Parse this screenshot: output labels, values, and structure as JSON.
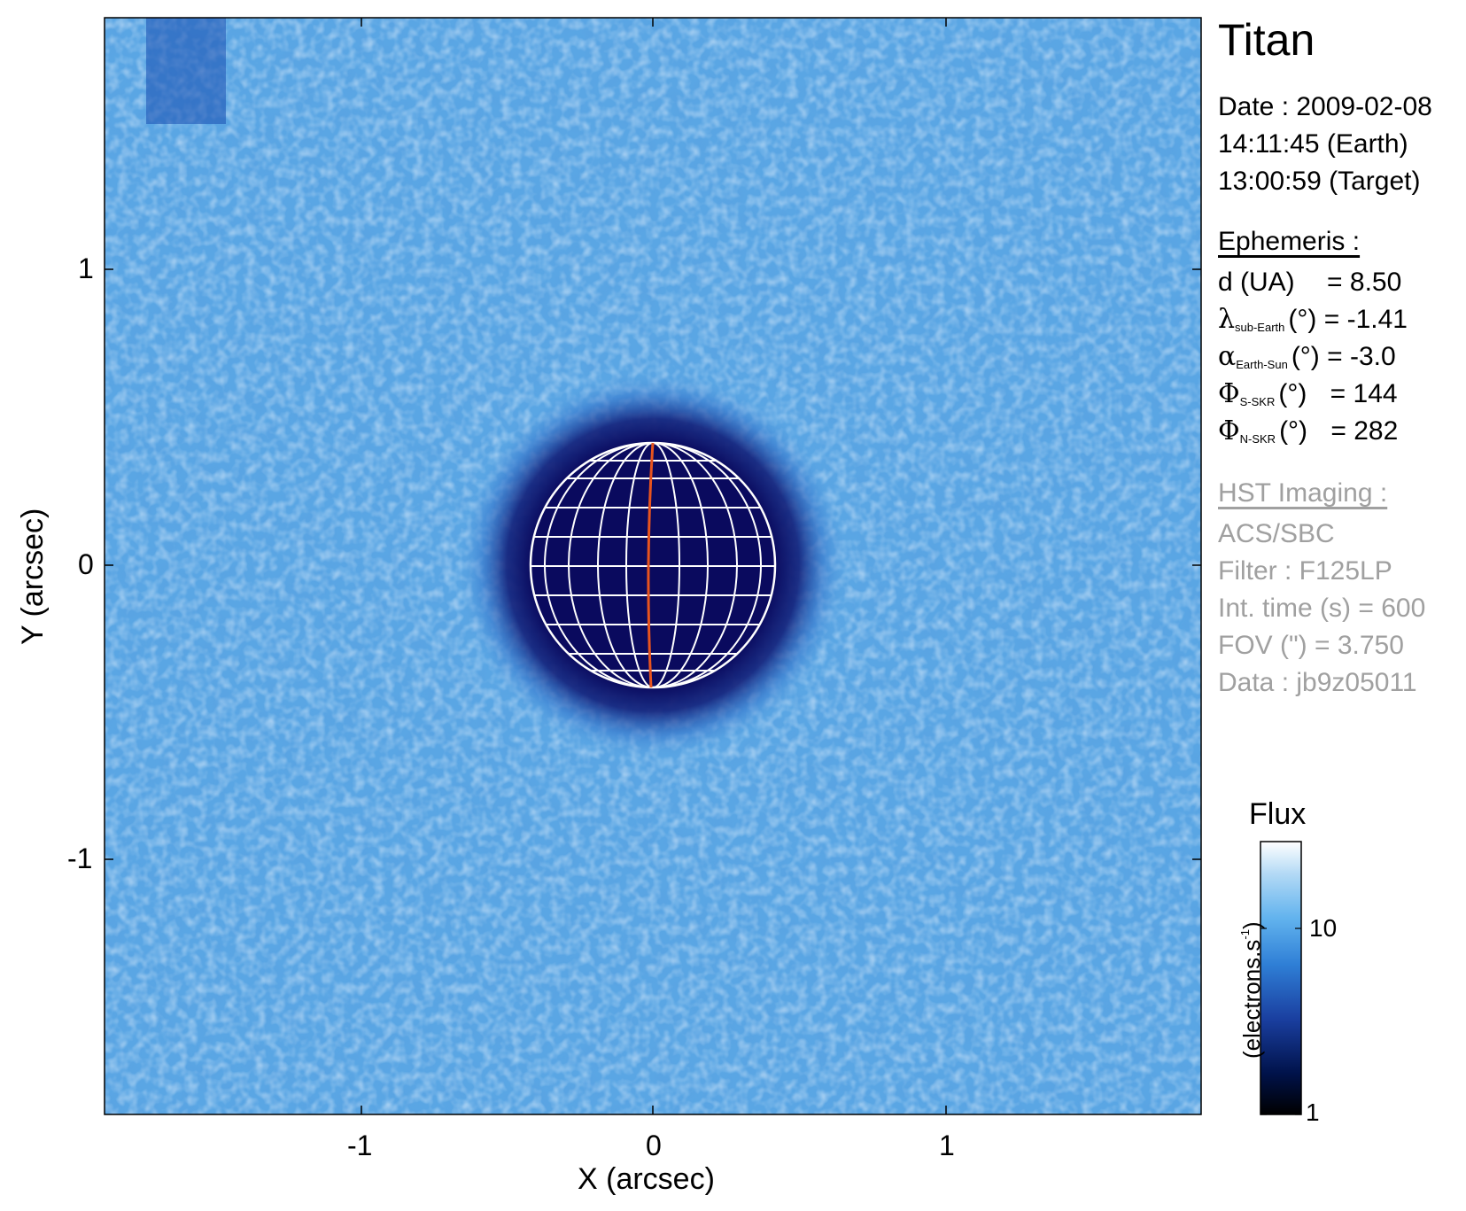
{
  "title": "Titan",
  "date": {
    "line1": "Date : 2009-02-08",
    "line2": "14:11:45 (Earth)",
    "line3": "13:00:59 (Target)"
  },
  "ephemeris": {
    "heading": "Ephemeris :",
    "d": {
      "label": "d (UA)",
      "value": "= 8.50"
    },
    "lambda": {
      "symbol": "λ",
      "sub": "sub-Earth",
      "unit": "(°)",
      "value": "= -1.41"
    },
    "alpha": {
      "symbol": "α",
      "sub": "Earth-Sun",
      "unit": "(°)",
      "value": "= -3.0"
    },
    "phi_s": {
      "symbol": "Φ",
      "sub": "S-SKR",
      "unit": "(°)",
      "value": "= 144"
    },
    "phi_n": {
      "symbol": "Φ",
      "sub": "N-SKR",
      "unit": "(°)",
      "value": "= 282"
    }
  },
  "hst": {
    "heading": "HST Imaging :",
    "instrument": "ACS/SBC",
    "filter": "Filter : F125LP",
    "int_time": "Int. time (s) = 600",
    "fov": "FOV (\") = 3.750",
    "data": "Data : jb9z05011"
  },
  "colorbar": {
    "title": "Flux",
    "label": "(electrons.s",
    "label_sup": "-1",
    "label_end": ")",
    "ticks": [
      {
        "label": "10",
        "value": 10
      },
      {
        "label": "1",
        "value": 1
      }
    ],
    "colors": [
      "#000000",
      "#00124a",
      "#1a3fa0",
      "#2f7fd6",
      "#62b3ee",
      "#b2d9f5",
      "#ffffff"
    ]
  },
  "axes": {
    "xlabel": "X (arcsec)",
    "ylabel": "Y (arcsec)",
    "x_ticks": [
      {
        "label": "-1",
        "value": -1
      },
      {
        "label": "0",
        "value": 0
      },
      {
        "label": "1",
        "value": 1
      }
    ],
    "y_ticks": [
      {
        "label": "1",
        "value": 1
      },
      {
        "label": "0",
        "value": 0
      },
      {
        "label": "-1",
        "value": -1
      }
    ],
    "xlim": [
      -1.875,
      1.875
    ],
    "ylim": [
      -1.875,
      1.875
    ]
  },
  "image": {
    "background_color": "#5aa6e4",
    "disk_color": "#0a0a5e",
    "grid_color": "#ffffff",
    "meridian_color": "#e8541e",
    "disk_radius_arcsec": 0.42
  }
}
